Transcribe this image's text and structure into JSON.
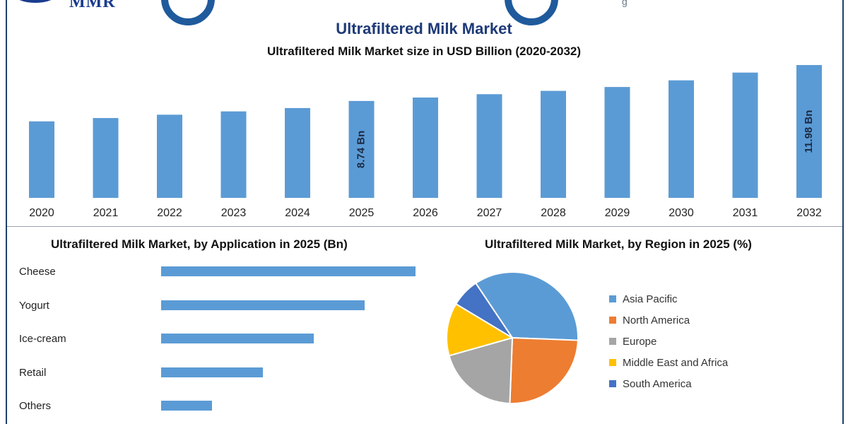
{
  "brand": {
    "logo_text": "MMR",
    "trailing_mark": "g"
  },
  "titles": {
    "main": "Ultrafiltered Milk Market",
    "sub": "Ultrafiltered Milk Market size in USD Billion (2020-2032)",
    "application": "Ultrafiltered Milk Market, by Application in 2025 (Bn)",
    "region": "Ultrafiltered Milk Market, by Region in 2025 (%)"
  },
  "colors": {
    "bar": "#5b9bd5",
    "title": "#1e3a78",
    "frame": "#1f3f6b",
    "asia_pacific": "#5b9bd5",
    "north_america": "#ed7d31",
    "europe": "#a5a5a5",
    "middle_east_africa": "#ffc000",
    "south_america": "#4472c4"
  },
  "chart_data": [
    {
      "type": "bar",
      "title": "Ultrafiltered Milk Market size in USD Billion (2020-2032)",
      "categories": [
        "2020",
        "2021",
        "2022",
        "2023",
        "2024",
        "2025",
        "2026",
        "2027",
        "2028",
        "2029",
        "2030",
        "2031",
        "2032"
      ],
      "values": [
        6.9,
        7.2,
        7.5,
        7.8,
        8.1,
        8.74,
        9.05,
        9.35,
        9.65,
        10.0,
        10.6,
        11.3,
        11.98
      ],
      "data_labels": [
        {
          "category": "2025",
          "text": "8.74 Bn"
        },
        {
          "category": "2032",
          "text": "11.98 Bn"
        }
      ],
      "ylim": [
        0,
        14
      ],
      "grid": false
    },
    {
      "type": "bar",
      "orientation": "horizontal",
      "title": "Ultrafiltered Milk Market, by Application in 2025 (Bn)",
      "categories": [
        "Cheese",
        "Yogurt",
        "Ice-cream",
        "Retail",
        "Others"
      ],
      "values": [
        3.0,
        2.4,
        1.8,
        1.2,
        0.6
      ],
      "xlim": [
        0,
        3.5
      ]
    },
    {
      "type": "pie",
      "title": "Ultrafiltered Milk Market, by Region in 2025 (%)",
      "labels": [
        "Asia Pacific",
        "North America",
        "Europe",
        "Middle East and Africa",
        "South America"
      ],
      "values": [
        35,
        25,
        20,
        13,
        7
      ],
      "legend": "right"
    }
  ]
}
